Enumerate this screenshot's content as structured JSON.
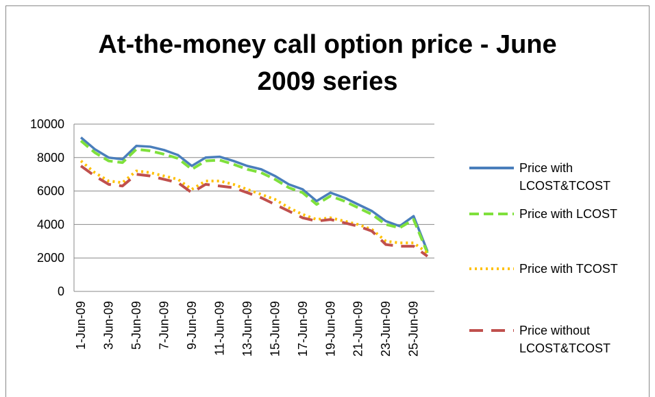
{
  "chart_data": {
    "type": "line",
    "title": "At-the-money call option price - June 2009 series",
    "categories": [
      "1-Jun-09",
      null,
      "3-Jun-09",
      null,
      "5-Jun-09",
      null,
      "7-Jun-09",
      null,
      "9-Jun-09",
      null,
      "11-Jun-09",
      null,
      "13-Jun-09",
      null,
      "15-Jun-09",
      null,
      "17-Jun-09",
      null,
      "19-Jun-09",
      null,
      "21-Jun-09",
      null,
      "23-Jun-09",
      null,
      "25-Jun-09",
      null
    ],
    "series": [
      {
        "name": "Price with LCOST&TCOST",
        "color": "#4a7ebb",
        "dash": "solid",
        "values": [
          9200,
          8500,
          8000,
          7900,
          8700,
          8650,
          8450,
          8150,
          7500,
          8000,
          8050,
          7800,
          7500,
          7300,
          6900,
          6400,
          6100,
          5400,
          5900,
          5600,
          5200,
          4800,
          4200,
          3900,
          4500,
          2400
        ]
      },
      {
        "name": "Price with LCOST",
        "color": "#7fe03c",
        "dash": "dashed",
        "values": [
          9000,
          8300,
          7800,
          7700,
          8500,
          8400,
          8200,
          7950,
          7300,
          7800,
          7850,
          7600,
          7300,
          7100,
          6700,
          6200,
          5900,
          5200,
          5700,
          5400,
          5000,
          4600,
          4000,
          3800,
          4300,
          2300
        ]
      },
      {
        "name": "Price with TCOST",
        "color": "#ffc000",
        "dash": "dotted",
        "values": [
          7800,
          7100,
          6600,
          6500,
          7200,
          7100,
          6900,
          6700,
          6100,
          6600,
          6600,
          6400,
          6100,
          5800,
          5500,
          5000,
          4600,
          4300,
          4400,
          4200,
          4000,
          3700,
          3000,
          2900,
          2900,
          2300
        ]
      },
      {
        "name": "Price without LCOST&TCOST",
        "color": "#c0504d",
        "dash": "long-dashed",
        "values": [
          7500,
          6900,
          6400,
          6300,
          7000,
          6900,
          6700,
          6500,
          5900,
          6400,
          6300,
          6200,
          5900,
          5600,
          5200,
          4800,
          4400,
          4200,
          4300,
          4100,
          3900,
          3600,
          2800,
          2700,
          2700,
          2100
        ]
      }
    ],
    "ylim": [
      0,
      10000
    ],
    "yticks": [
      0,
      2000,
      4000,
      6000,
      8000,
      10000
    ],
    "grid": true,
    "legend": "right"
  }
}
